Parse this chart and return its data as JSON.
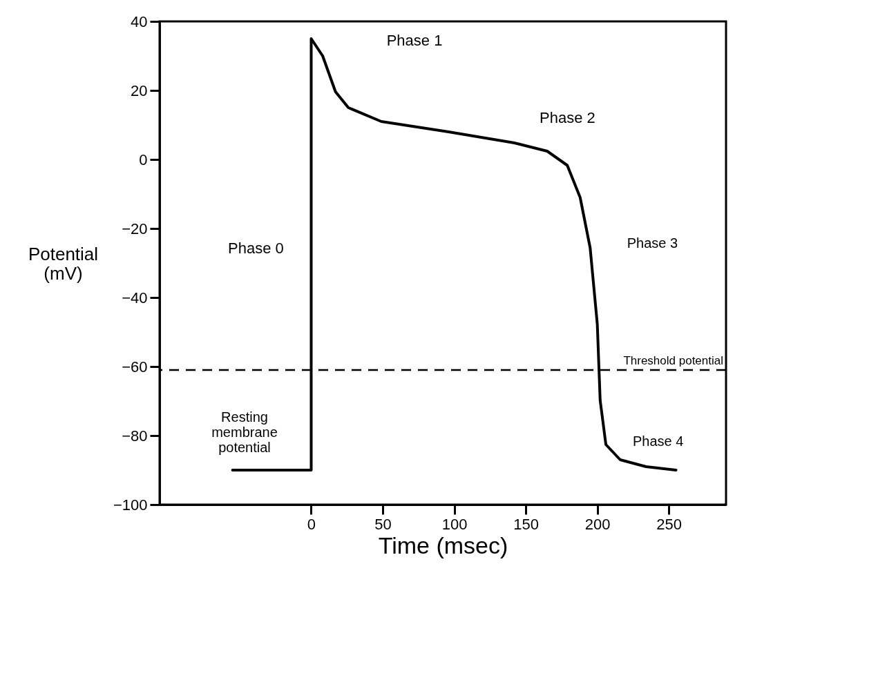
{
  "chart_data": {
    "type": "line",
    "xlabel": "Time (msec)",
    "ylabel": "Potential (mV)",
    "xlim": [
      -106,
      290
    ],
    "ylim": [
      -100,
      40
    ],
    "xticks": [
      0,
      50,
      100,
      150,
      200,
      250
    ],
    "yticks": [
      -100,
      -80,
      -60,
      -40,
      -20,
      0,
      20,
      40
    ],
    "grid": false,
    "marker": "none",
    "line_style": "solid",
    "series": [
      {
        "color": "#000000",
        "x": [
          -55,
          0,
          0,
          8,
          17,
          26,
          49,
          96,
          142,
          165,
          179,
          188,
          195,
          200,
          202,
          206,
          216,
          234,
          255
        ],
        "values": [
          -90,
          -90,
          35,
          30,
          19.6,
          15,
          11,
          8,
          4.8,
          2.4,
          -1.7,
          -11,
          -25.6,
          -47.7,
          -69.8,
          -82.6,
          -87,
          -89,
          -90
        ]
      }
    ],
    "ref_lines": [
      {
        "axis": "y",
        "value": -61,
        "label": "Threshold potential",
        "line_style": "dashed",
        "color": "#000000"
      }
    ],
    "annotations": [
      "Phase 0",
      "Phase 1",
      "Phase 2",
      "Phase 3",
      "Phase 4",
      "Resting membrane potential"
    ]
  }
}
